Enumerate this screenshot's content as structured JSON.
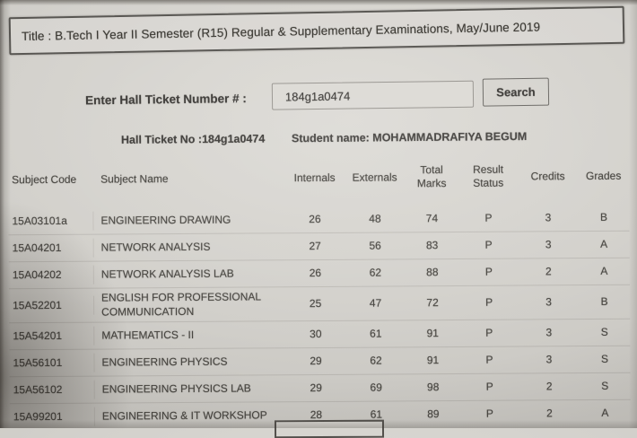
{
  "title": "Title : B.Tech I Year II Semester (R15) Regular & Supplementary Examinations, May/June 2019",
  "search": {
    "label": "Enter Hall Ticket Number # :",
    "value": "184g1a0474",
    "button_label": "Search"
  },
  "student_info": {
    "hall_ticket": "Hall Ticket No :184g1a0474",
    "student_name": "Student name: MOHAMMADRAFIYA BEGUM"
  },
  "results_table": {
    "columns": [
      "Subject Code",
      "Subject Name",
      "Internals",
      "Externals",
      "Total Marks",
      "Result Status",
      "Credits",
      "Grades"
    ],
    "rows": [
      [
        "15A03101a",
        "ENGINEERING DRAWING",
        "26",
        "48",
        "74",
        "P",
        "3",
        "B"
      ],
      [
        "15A04201",
        "NETWORK ANALYSIS",
        "27",
        "56",
        "83",
        "P",
        "3",
        "A"
      ],
      [
        "15A04202",
        "NETWORK ANALYSIS LAB",
        "26",
        "62",
        "88",
        "P",
        "2",
        "A"
      ],
      [
        "15A52201",
        "ENGLISH FOR PROFESSIONAL COMMUNICATION",
        "25",
        "47",
        "72",
        "P",
        "3",
        "B"
      ],
      [
        "15A54201",
        "MATHEMATICS - II",
        "30",
        "61",
        "91",
        "P",
        "3",
        "S"
      ],
      [
        "15A56101",
        "ENGINEERING PHYSICS",
        "29",
        "62",
        "91",
        "P",
        "3",
        "S"
      ],
      [
        "15A56102",
        "ENGINEERING PHYSICS LAB",
        "29",
        "69",
        "98",
        "P",
        "2",
        "S"
      ],
      [
        "15A99201",
        "ENGINEERING & IT WORKSHOP",
        "28",
        "61",
        "89",
        "P",
        "2",
        "A"
      ]
    ]
  },
  "colors": {
    "paper": "#d3d1cc",
    "text": "#403e3b",
    "box_border": "#565450",
    "input_border": "#97948f"
  }
}
